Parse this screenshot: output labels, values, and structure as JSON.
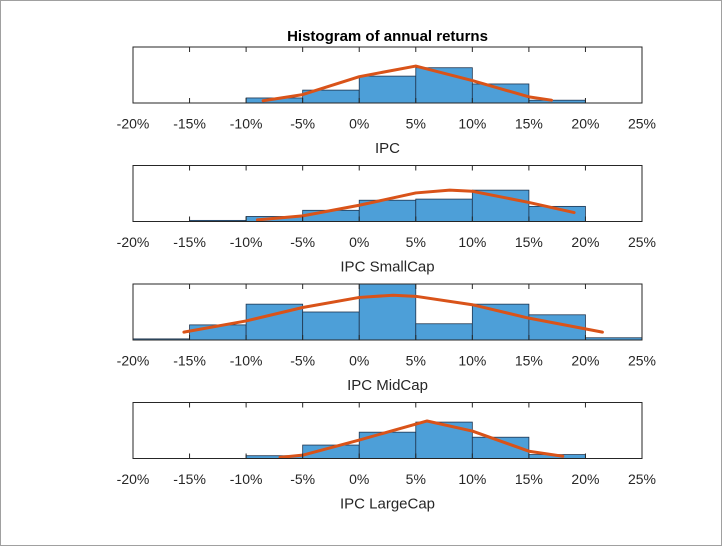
{
  "chart_data": [
    {
      "type": "histogram",
      "title": "Histogram of annual returns",
      "xlabel": "IPC",
      "bins": [
        -20,
        -15,
        -10,
        -5,
        0,
        5,
        10,
        15,
        20,
        25
      ],
      "values": [
        0,
        0,
        0.09,
        0.23,
        0.48,
        0.63,
        0.34,
        0.05,
        0
      ],
      "color": "#4d9fd8",
      "edgecolor": "#1f3550",
      "fit": {
        "x": [
          -8.5,
          -5,
          0,
          5,
          10,
          15,
          17
        ],
        "values": [
          0.04,
          0.15,
          0.47,
          0.66,
          0.4,
          0.11,
          0.05
        ],
        "color": "#d95319"
      },
      "xlim": [
        -20,
        25
      ],
      "ylim": [
        0,
        1
      ],
      "xticks": [
        {
          "value": -20,
          "label": "-20%"
        },
        {
          "value": -15,
          "label": "-15%"
        },
        {
          "value": -10,
          "label": "-10%"
        },
        {
          "value": -5,
          "label": "-5%"
        },
        {
          "value": 0,
          "label": "0%"
        },
        {
          "value": 5,
          "label": "5%"
        },
        {
          "value": 10,
          "label": "10%"
        },
        {
          "value": 15,
          "label": "15%"
        },
        {
          "value": 20,
          "label": "20%"
        },
        {
          "value": 25,
          "label": "25%"
        }
      ]
    },
    {
      "type": "histogram",
      "xlabel": "IPC SmallCap",
      "bins": [
        -20,
        -15,
        -10,
        -5,
        0,
        5,
        10,
        15,
        20,
        25
      ],
      "values": [
        0,
        0.02,
        0.09,
        0.2,
        0.38,
        0.4,
        0.56,
        0.27,
        0
      ],
      "color": "#4d9fd8",
      "edgecolor": "#1f3550",
      "fit": {
        "x": [
          -9,
          -5,
          0,
          5,
          8,
          10,
          15,
          19
        ],
        "values": [
          0.03,
          0.1,
          0.29,
          0.51,
          0.56,
          0.54,
          0.34,
          0.16
        ],
        "color": "#d95319"
      },
      "xlim": [
        -20,
        25
      ],
      "ylim": [
        0,
        1
      ],
      "xticks": [
        {
          "value": -20,
          "label": "-20%"
        },
        {
          "value": -15,
          "label": "-15%"
        },
        {
          "value": -10,
          "label": "-10%"
        },
        {
          "value": -5,
          "label": "-5%"
        },
        {
          "value": 0,
          "label": "0%"
        },
        {
          "value": 5,
          "label": "5%"
        },
        {
          "value": 10,
          "label": "10%"
        },
        {
          "value": 15,
          "label": "15%"
        },
        {
          "value": 20,
          "label": "20%"
        },
        {
          "value": 25,
          "label": "25%"
        }
      ]
    },
    {
      "type": "histogram",
      "xlabel": "IPC MidCap",
      "bins": [
        -20,
        -15,
        -10,
        -5,
        0,
        5,
        10,
        15,
        20,
        25
      ],
      "values": [
        0.02,
        0.27,
        0.64,
        0.5,
        1,
        0.29,
        0.64,
        0.45,
        0.04
      ],
      "color": "#4d9fd8",
      "edgecolor": "#1f3550",
      "fit": {
        "x": [
          -15.5,
          -10,
          -5,
          0,
          3,
          5,
          10,
          15,
          21.5
        ],
        "values": [
          0.14,
          0.34,
          0.58,
          0.76,
          0.8,
          0.78,
          0.63,
          0.39,
          0.14
        ],
        "color": "#d95319"
      },
      "xlim": [
        -20,
        25
      ],
      "ylim": [
        0,
        1
      ],
      "xticks": [
        {
          "value": -20,
          "label": "-20%"
        },
        {
          "value": -15,
          "label": "-15%"
        },
        {
          "value": -10,
          "label": "-10%"
        },
        {
          "value": -5,
          "label": "-5%"
        },
        {
          "value": 0,
          "label": "0%"
        },
        {
          "value": 5,
          "label": "5%"
        },
        {
          "value": 10,
          "label": "10%"
        },
        {
          "value": 15,
          "label": "15%"
        },
        {
          "value": 20,
          "label": "20%"
        },
        {
          "value": 25,
          "label": "25%"
        }
      ]
    },
    {
      "type": "histogram",
      "xlabel": "IPC LargeCap",
      "bins": [
        -20,
        -15,
        -10,
        -5,
        0,
        5,
        10,
        15,
        20,
        25
      ],
      "values": [
        0,
        0,
        0.05,
        0.24,
        0.47,
        0.65,
        0.38,
        0.07,
        0
      ],
      "color": "#4d9fd8",
      "edgecolor": "#1f3550",
      "fit": {
        "x": [
          -7,
          -5,
          0,
          6,
          10,
          15,
          18
        ],
        "values": [
          0.02,
          0.06,
          0.33,
          0.67,
          0.49,
          0.13,
          0.04
        ],
        "color": "#d95319"
      },
      "xlim": [
        -20,
        25
      ],
      "ylim": [
        0,
        1
      ],
      "xticks": [
        {
          "value": -20,
          "label": "-20%"
        },
        {
          "value": -15,
          "label": "-15%"
        },
        {
          "value": -10,
          "label": "-10%"
        },
        {
          "value": -5,
          "label": "-5%"
        },
        {
          "value": 0,
          "label": "0%"
        },
        {
          "value": 5,
          "label": "5%"
        },
        {
          "value": 10,
          "label": "10%"
        },
        {
          "value": 15,
          "label": "15%"
        },
        {
          "value": 20,
          "label": "20%"
        },
        {
          "value": 25,
          "label": "25%"
        }
      ]
    }
  ]
}
